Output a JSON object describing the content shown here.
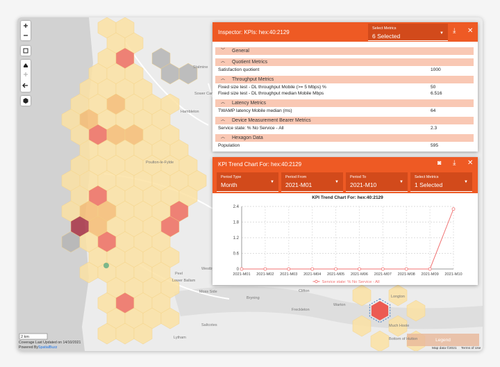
{
  "map": {
    "place_labels": [
      "Stalmine",
      "Sower Car",
      "Hambleton",
      "Poulton-le-Fylde",
      "Peel",
      "Lower Ballam",
      "Moss Side",
      "Westby",
      "Bryning",
      "Warton",
      "Freckleton",
      "Clifton",
      "Longton",
      "Saltcotes",
      "Lytham",
      "Much Hoole",
      "Bottom of Hutton"
    ],
    "scale": "2 km",
    "coverage_note": "Coverage Last Updated on 14/10/2021",
    "powered_by": "Powered By",
    "brand": "SpatialBuzz",
    "legend_button": "Legend",
    "attribution": "Map data ©2021",
    "terms": "Terms of Use"
  },
  "inspector": {
    "title": "Inspector: KPIs: hex:40:2129",
    "metrics_select": {
      "label": "Select Metrics",
      "value": "6 Selected"
    },
    "sections": [
      {
        "name": "General",
        "rows": []
      },
      {
        "name": "Quotient Metrics",
        "rows": [
          {
            "label": "Satisfaction quotient",
            "value": "1000"
          }
        ]
      },
      {
        "name": "Throughput Metrics",
        "rows": [
          {
            "label": "Fixed size test - DL throughput Mobile (>= 5 Mbps) %",
            "value": "50"
          },
          {
            "label": "Fixed size test - DL throughput median Mobile Mbps",
            "value": "6.516"
          }
        ]
      },
      {
        "name": "Latency Metrics",
        "rows": [
          {
            "label": "TWAMP latency Mobile median (ms)",
            "value": "64"
          }
        ]
      },
      {
        "name": "Device Measurement Bearer Metrics",
        "rows": [
          {
            "label": "Service state: % No Service - All",
            "value": "2.3"
          }
        ]
      },
      {
        "name": "Hexagon Data",
        "rows": [
          {
            "label": "Population",
            "value": "595"
          }
        ]
      }
    ]
  },
  "trend_panel": {
    "title": "KPI Trend Chart For: hex:40:2129",
    "selects": [
      {
        "label": "Period Type",
        "value": "Month"
      },
      {
        "label": "Period From",
        "value": "2021-M01"
      },
      {
        "label": "Period To",
        "value": "2021-M10"
      },
      {
        "label": "Select Metrics",
        "value": "1 Selected"
      }
    ]
  },
  "chart_data": {
    "type": "line",
    "title": "KPI Trend Chart For: hex:40:2129",
    "categories": [
      "2021-M01",
      "2021-M02",
      "2021-M03",
      "2021-M04",
      "2021-M05",
      "2021-M06",
      "2021-M07",
      "2021-M08",
      "2021-M09",
      "2021-M10"
    ],
    "series": [
      {
        "name": "Service state: % No Service - All",
        "color": "#f07070",
        "values": [
          0,
          0,
          0,
          0,
          0,
          0,
          0,
          0,
          0,
          2.3
        ]
      }
    ],
    "ylim": [
      0,
      2.4
    ],
    "yticks": [
      0,
      0.6,
      1.2,
      1.8,
      2.4
    ],
    "grid": true
  }
}
